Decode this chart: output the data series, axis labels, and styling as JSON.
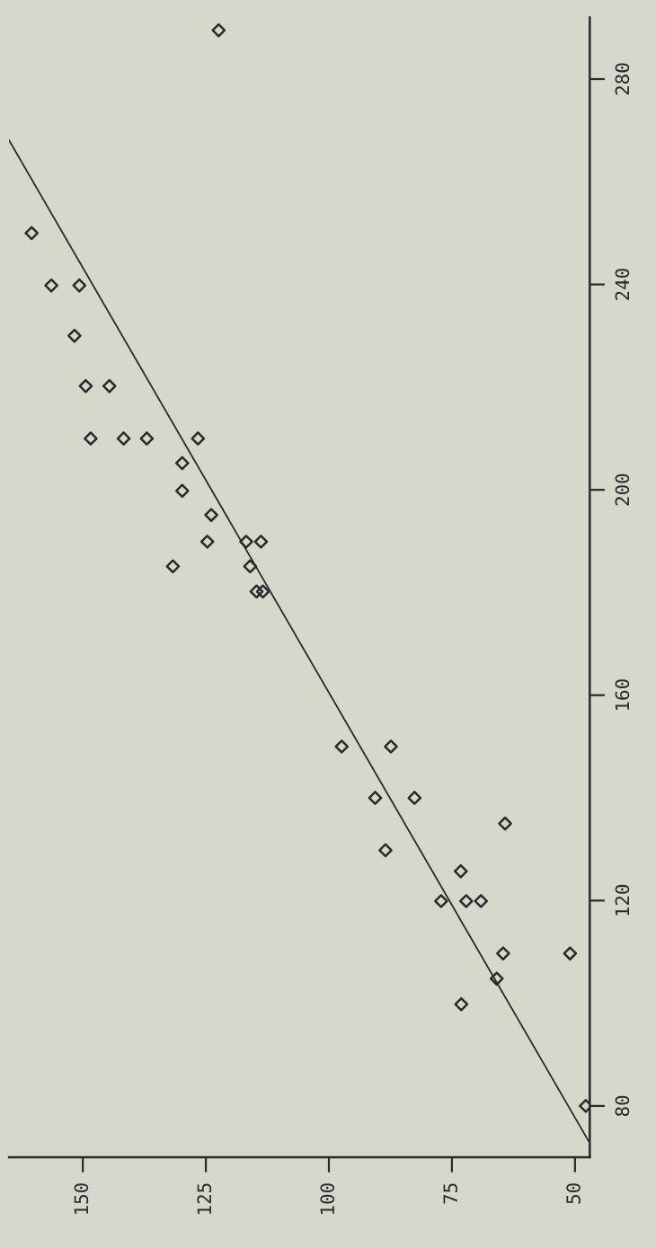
{
  "chart_data": {
    "type": "scatter",
    "xlim": [
      165,
      47
    ],
    "ylim": [
      70,
      292
    ],
    "marker": "diamond",
    "grid": false,
    "xticks": [
      50,
      75,
      100,
      125,
      150
    ],
    "yticks": [
      80,
      120,
      160,
      200,
      240,
      280
    ],
    "series": [
      {
        "color": "#2a2a2a",
        "x": [
          122.4,
          160.4,
          156.4,
          150.7,
          151.7,
          149.4,
          144.6,
          148.4,
          141.7,
          137.0,
          126.6,
          129.8,
          129.8,
          123.9,
          124.7,
          116.8,
          113.8,
          131.7,
          116.0,
          113.4,
          114.7,
          97.4,
          87.4,
          90.6,
          82.6,
          64.2,
          88.5,
          73.2,
          77.2,
          72.1,
          69.1,
          64.6,
          51.0,
          65.9,
          73.1,
          47.8
        ],
        "values": [
          289.5,
          250,
          239.8,
          239.8,
          230,
          220.2,
          220.2,
          210,
          210,
          210,
          210,
          205.2,
          199.8,
          195.1,
          189.9,
          189.9,
          189.9,
          185.1,
          185.1,
          180.2,
          180.2,
          150,
          150,
          140,
          140,
          135,
          129.8,
          125.7,
          119.9,
          119.9,
          119.9,
          109.7,
          109.7,
          104.8,
          99.8,
          80
        ]
      },
      {
        "type": "line",
        "color": "#2a2a2a",
        "marker": "none",
        "x": [
          47.2,
          165
        ],
        "values": [
          73.1,
          268.1
        ]
      }
    ]
  }
}
